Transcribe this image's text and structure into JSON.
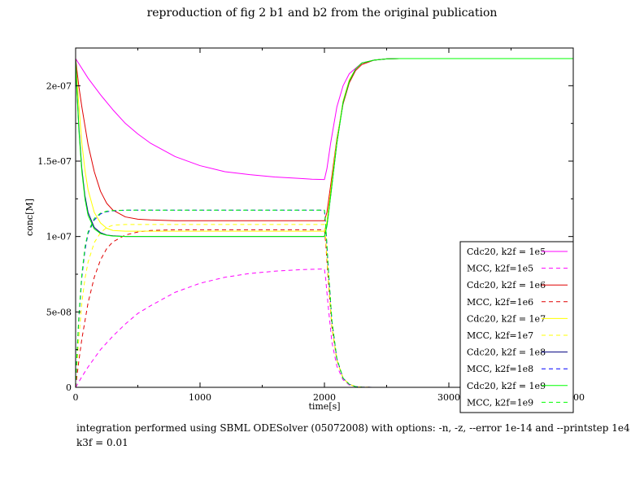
{
  "title": "reproduction of fig 2 b1 and b2 from the original publication",
  "caption_lines": [
    "integration performed using SBML ODESolver (05072008) with options: -n, -z, --error 1e-14 and --printstep 1e4",
    "k3f = 0.01"
  ],
  "chart_data": {
    "type": "line",
    "xlabel": "time[s]",
    "ylabel": "conc[M]",
    "xlim": [
      0,
      4000
    ],
    "ylim": [
      0,
      2.25e-07
    ],
    "xticks": [
      0,
      1000,
      2000,
      3000,
      4000
    ],
    "xtick_labels": [
      "0",
      "1000",
      "2000",
      "3000",
      "4000"
    ],
    "yticks": [
      0,
      5e-08,
      1e-07,
      1.5e-07,
      2e-07
    ],
    "ytick_labels": [
      "0",
      "5e-08",
      "1e-07",
      "1.5e-07",
      "2e-07"
    ],
    "grid": false,
    "legend_position": "bottom-right",
    "series": [
      {
        "name": "Cdc20, k2f = 1e5",
        "color": "#ff00ff",
        "dash": "solid",
        "x": [
          0,
          100,
          200,
          300,
          400,
          500,
          600,
          800,
          1000,
          1200,
          1400,
          1600,
          1800,
          1900,
          2000,
          2020,
          2050,
          2100,
          2150,
          2200,
          2300,
          2400,
          2500,
          2600,
          2800,
          3000,
          3500,
          4000
        ],
        "y": [
          2.18e-07,
          2.05e-07,
          1.94e-07,
          1.84e-07,
          1.75e-07,
          1.68e-07,
          1.62e-07,
          1.53e-07,
          1.47e-07,
          1.43e-07,
          1.41e-07,
          1.395e-07,
          1.385e-07,
          1.38e-07,
          1.378e-07,
          1.45e-07,
          1.62e-07,
          1.86e-07,
          2e-07,
          2.08e-07,
          2.15e-07,
          2.17e-07,
          2.178e-07,
          2.18e-07,
          2.18e-07,
          2.18e-07,
          2.18e-07,
          2.18e-07
        ]
      },
      {
        "name": "MCC, k2f=1e5",
        "color": "#ff00ff",
        "dash": "dashed",
        "x": [
          0,
          50,
          100,
          200,
          300,
          400,
          500,
          600,
          800,
          1000,
          1200,
          1400,
          1600,
          1800,
          2000,
          2010,
          2030,
          2060,
          2100,
          2150,
          2200,
          2250,
          2300,
          2400,
          2600,
          3000,
          4000
        ],
        "y": [
          0,
          7e-09,
          1.35e-08,
          2.5e-08,
          3.4e-08,
          4.2e-08,
          4.9e-08,
          5.4e-08,
          6.3e-08,
          6.9e-08,
          7.3e-08,
          7.55e-08,
          7.7e-08,
          7.8e-08,
          7.85e-08,
          7.2e-08,
          5.4e-08,
          3e-08,
          1.4e-08,
          5e-09,
          1.5e-09,
          5e-10,
          1e-10,
          0,
          0,
          0,
          0
        ]
      },
      {
        "name": "Cdc20, k2f = 1e6",
        "color": "#e00000",
        "dash": "solid",
        "x": [
          0,
          25,
          50,
          100,
          150,
          200,
          250,
          300,
          400,
          500,
          600,
          800,
          1000,
          1200,
          1400,
          1600,
          1800,
          2000,
          2020,
          2050,
          2100,
          2150,
          2200,
          2250,
          2300,
          2400,
          2500,
          2600,
          3000,
          4000
        ],
        "y": [
          2.18e-07,
          2e-07,
          1.86e-07,
          1.61e-07,
          1.43e-07,
          1.3e-07,
          1.22e-07,
          1.175e-07,
          1.13e-07,
          1.115e-07,
          1.11e-07,
          1.105e-07,
          1.105e-07,
          1.105e-07,
          1.105e-07,
          1.105e-07,
          1.105e-07,
          1.105e-07,
          1.16e-07,
          1.34e-07,
          1.65e-07,
          1.88e-07,
          2.02e-07,
          2.1e-07,
          2.14e-07,
          2.17e-07,
          2.178e-07,
          2.18e-07,
          2.18e-07,
          2.18e-07
        ]
      },
      {
        "name": "MCC, k2f=1e6",
        "color": "#e00000",
        "dash": "dashed",
        "x": [
          0,
          25,
          50,
          100,
          150,
          200,
          250,
          300,
          400,
          500,
          600,
          800,
          1000,
          1200,
          1400,
          1600,
          1800,
          2000,
          2010,
          2030,
          2060,
          2100,
          2150,
          2200,
          2250,
          2300,
          2400,
          2600,
          3000,
          4000
        ],
        "y": [
          0,
          1.7e-08,
          3.2e-08,
          5.6e-08,
          7.3e-08,
          8.45e-08,
          9.2e-08,
          9.65e-08,
          1.01e-07,
          1.03e-07,
          1.04e-07,
          1.045e-07,
          1.045e-07,
          1.045e-07,
          1.045e-07,
          1.045e-07,
          1.045e-07,
          1.045e-07,
          9.6e-08,
          7.2e-08,
          4e-08,
          1.8e-08,
          6e-09,
          2e-09,
          5e-10,
          1e-10,
          0,
          0,
          0,
          0
        ]
      },
      {
        "name": "Cdc20, k2f = 1e7",
        "color": "#ffff00",
        "dash": "solid",
        "x": [
          0,
          10,
          25,
          50,
          75,
          100,
          150,
          200,
          250,
          300,
          400,
          500,
          600,
          800,
          1000,
          1200,
          1400,
          1600,
          1800,
          2000,
          2020,
          2050,
          2100,
          2150,
          2200,
          2250,
          2300,
          2400,
          2500,
          2600,
          3000,
          4000
        ],
        "y": [
          2.18e-07,
          2.05e-07,
          1.88e-07,
          1.62e-07,
          1.44e-07,
          1.31e-07,
          1.16e-07,
          1.09e-07,
          1.055e-07,
          1.04e-07,
          1.035e-07,
          1.035e-07,
          1.035e-07,
          1.035e-07,
          1.035e-07,
          1.035e-07,
          1.035e-07,
          1.035e-07,
          1.035e-07,
          1.035e-07,
          1.1e-07,
          1.3e-07,
          1.64e-07,
          1.9e-07,
          2.04e-07,
          2.11e-07,
          2.15e-07,
          2.17e-07,
          2.178e-07,
          2.18e-07,
          2.18e-07,
          2.18e-07
        ]
      },
      {
        "name": "MCC, k2f=1e7",
        "color": "#ffff00",
        "dash": "dashed",
        "x": [
          0,
          10,
          25,
          50,
          75,
          100,
          150,
          200,
          250,
          300,
          400,
          500,
          600,
          800,
          1000,
          1200,
          1400,
          1600,
          1800,
          2000,
          2010,
          2030,
          2060,
          2100,
          2150,
          2200,
          2250,
          2300,
          2400,
          2600,
          3000,
          4000
        ],
        "y": [
          0,
          1.4e-08,
          3.2e-08,
          5.6e-08,
          7.2e-08,
          8.3e-08,
          9.6e-08,
          1.025e-07,
          1.06e-07,
          1.075e-07,
          1.08e-07,
          1.08e-07,
          1.08e-07,
          1.08e-07,
          1.08e-07,
          1.08e-07,
          1.08e-07,
          1.08e-07,
          1.08e-07,
          1.08e-07,
          9.9e-08,
          7.4e-08,
          4.1e-08,
          1.8e-08,
          6e-09,
          2e-09,
          5e-10,
          1e-10,
          0,
          0,
          0,
          0
        ]
      },
      {
        "name": "Cdc20, k2f = 1e8",
        "color": "#000080",
        "dash": "solid",
        "x": [
          0,
          10,
          25,
          50,
          75,
          100,
          150,
          200,
          250,
          300,
          400,
          500,
          600,
          800,
          1000,
          1200,
          1400,
          1600,
          1800,
          2000,
          2020,
          2050,
          2100,
          2150,
          2200,
          2250,
          2300,
          2400,
          2500,
          2600,
          3000,
          4000
        ],
        "y": [
          2.18e-07,
          1.98e-07,
          1.74e-07,
          1.45e-07,
          1.27e-07,
          1.16e-07,
          1.06e-07,
          1.025e-07,
          1.01e-07,
          1.005e-07,
          1e-07,
          1e-07,
          1e-07,
          1e-07,
          1e-07,
          1e-07,
          1e-07,
          1e-07,
          1e-07,
          1e-07,
          1.07e-07,
          1.27e-07,
          1.62e-07,
          1.89e-07,
          2.03e-07,
          2.11e-07,
          2.15e-07,
          2.17e-07,
          2.178e-07,
          2.18e-07,
          2.18e-07,
          2.18e-07
        ]
      },
      {
        "name": "MCC, k2f=1e8",
        "color": "#0000ff",
        "dash": "dashed",
        "x": [
          0,
          10,
          25,
          50,
          75,
          100,
          150,
          200,
          250,
          300,
          400,
          500,
          600,
          800,
          1000,
          1200,
          1400,
          1600,
          1800,
          2000,
          2010,
          2030,
          2060,
          2100,
          2150,
          2200,
          2250,
          2300,
          2400,
          2600,
          3000,
          4000
        ],
        "y": [
          0,
          2e-08,
          4.4e-08,
          7.3e-08,
          9.1e-08,
          1.02e-07,
          1.11e-07,
          1.15e-07,
          1.165e-07,
          1.17e-07,
          1.175e-07,
          1.175e-07,
          1.175e-07,
          1.175e-07,
          1.175e-07,
          1.175e-07,
          1.175e-07,
          1.175e-07,
          1.175e-07,
          1.175e-07,
          1.08e-07,
          8e-08,
          4.4e-08,
          1.9e-08,
          6e-09,
          2e-09,
          5e-10,
          1e-10,
          0,
          0,
          0,
          0
        ]
      },
      {
        "name": "Cdc20, k2f = 1e9",
        "color": "#00ff00",
        "dash": "solid",
        "x": [
          0,
          10,
          25,
          50,
          75,
          100,
          150,
          200,
          250,
          300,
          400,
          500,
          600,
          800,
          1000,
          1200,
          1400,
          1600,
          1800,
          2000,
          2020,
          2050,
          2100,
          2150,
          2200,
          2250,
          2300,
          2400,
          2500,
          2600,
          3000,
          4000
        ],
        "y": [
          2.18e-07,
          1.97e-07,
          1.72e-07,
          1.43e-07,
          1.25e-07,
          1.14e-07,
          1.05e-07,
          1.02e-07,
          1.008e-07,
          1.003e-07,
          1e-07,
          1e-07,
          1e-07,
          1e-07,
          1e-07,
          1e-07,
          1e-07,
          1e-07,
          1e-07,
          1e-07,
          1.07e-07,
          1.27e-07,
          1.62e-07,
          1.89e-07,
          2.03e-07,
          2.11e-07,
          2.15e-07,
          2.17e-07,
          2.178e-07,
          2.18e-07,
          2.18e-07,
          2.18e-07
        ]
      },
      {
        "name": "MCC, k2f=1e9",
        "color": "#00ff00",
        "dash": "dashed",
        "x": [
          0,
          10,
          25,
          50,
          75,
          100,
          150,
          200,
          250,
          300,
          400,
          500,
          600,
          800,
          1000,
          1200,
          1400,
          1600,
          1800,
          2000,
          2010,
          2030,
          2060,
          2100,
          2150,
          2200,
          2250,
          2300,
          2400,
          2600,
          3000,
          4000
        ],
        "y": [
          0,
          2.1e-08,
          4.6e-08,
          7.5e-08,
          9.3e-08,
          1.03e-07,
          1.12e-07,
          1.155e-07,
          1.168e-07,
          1.172e-07,
          1.175e-07,
          1.175e-07,
          1.175e-07,
          1.175e-07,
          1.175e-07,
          1.175e-07,
          1.175e-07,
          1.175e-07,
          1.175e-07,
          1.175e-07,
          1.08e-07,
          8e-08,
          4.4e-08,
          1.9e-08,
          6e-09,
          2e-09,
          5e-10,
          1e-10,
          0,
          0,
          0,
          0
        ]
      }
    ]
  }
}
